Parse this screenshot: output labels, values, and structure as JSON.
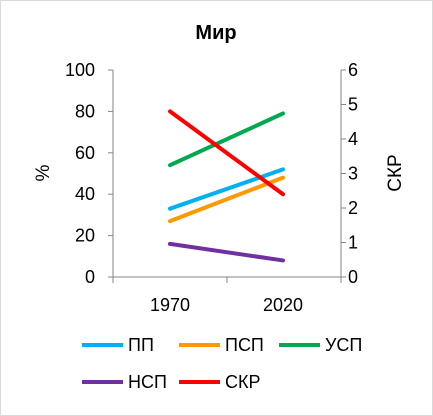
{
  "chart_data": {
    "type": "line",
    "title": "Мир",
    "x": [
      "1970",
      "2020"
    ],
    "ylabel_left": "%",
    "ylabel_right": "СКР",
    "ylim_left": [
      0,
      100
    ],
    "ylim_right": [
      0,
      6
    ],
    "yticks_left": [
      "0",
      "20",
      "40",
      "60",
      "80",
      "100"
    ],
    "yticks_right": [
      "0",
      "1",
      "2",
      "3",
      "4",
      "5",
      "6"
    ],
    "legend_position": "bottom",
    "grid": false,
    "series": [
      {
        "name": "ПП",
        "axis": "left",
        "color": "#00b0f0",
        "values": [
          33,
          52
        ]
      },
      {
        "name": "ПСП",
        "axis": "left",
        "color": "#ff9900",
        "values": [
          27,
          48
        ]
      },
      {
        "name": "УСП",
        "axis": "left",
        "color": "#00a850",
        "values": [
          54,
          79
        ]
      },
      {
        "name": "НСП",
        "axis": "left",
        "color": "#7030a0",
        "values": [
          16,
          8
        ]
      },
      {
        "name": "СКР",
        "axis": "right",
        "color": "#ff0000",
        "values": [
          4.8,
          2.4
        ]
      }
    ]
  }
}
